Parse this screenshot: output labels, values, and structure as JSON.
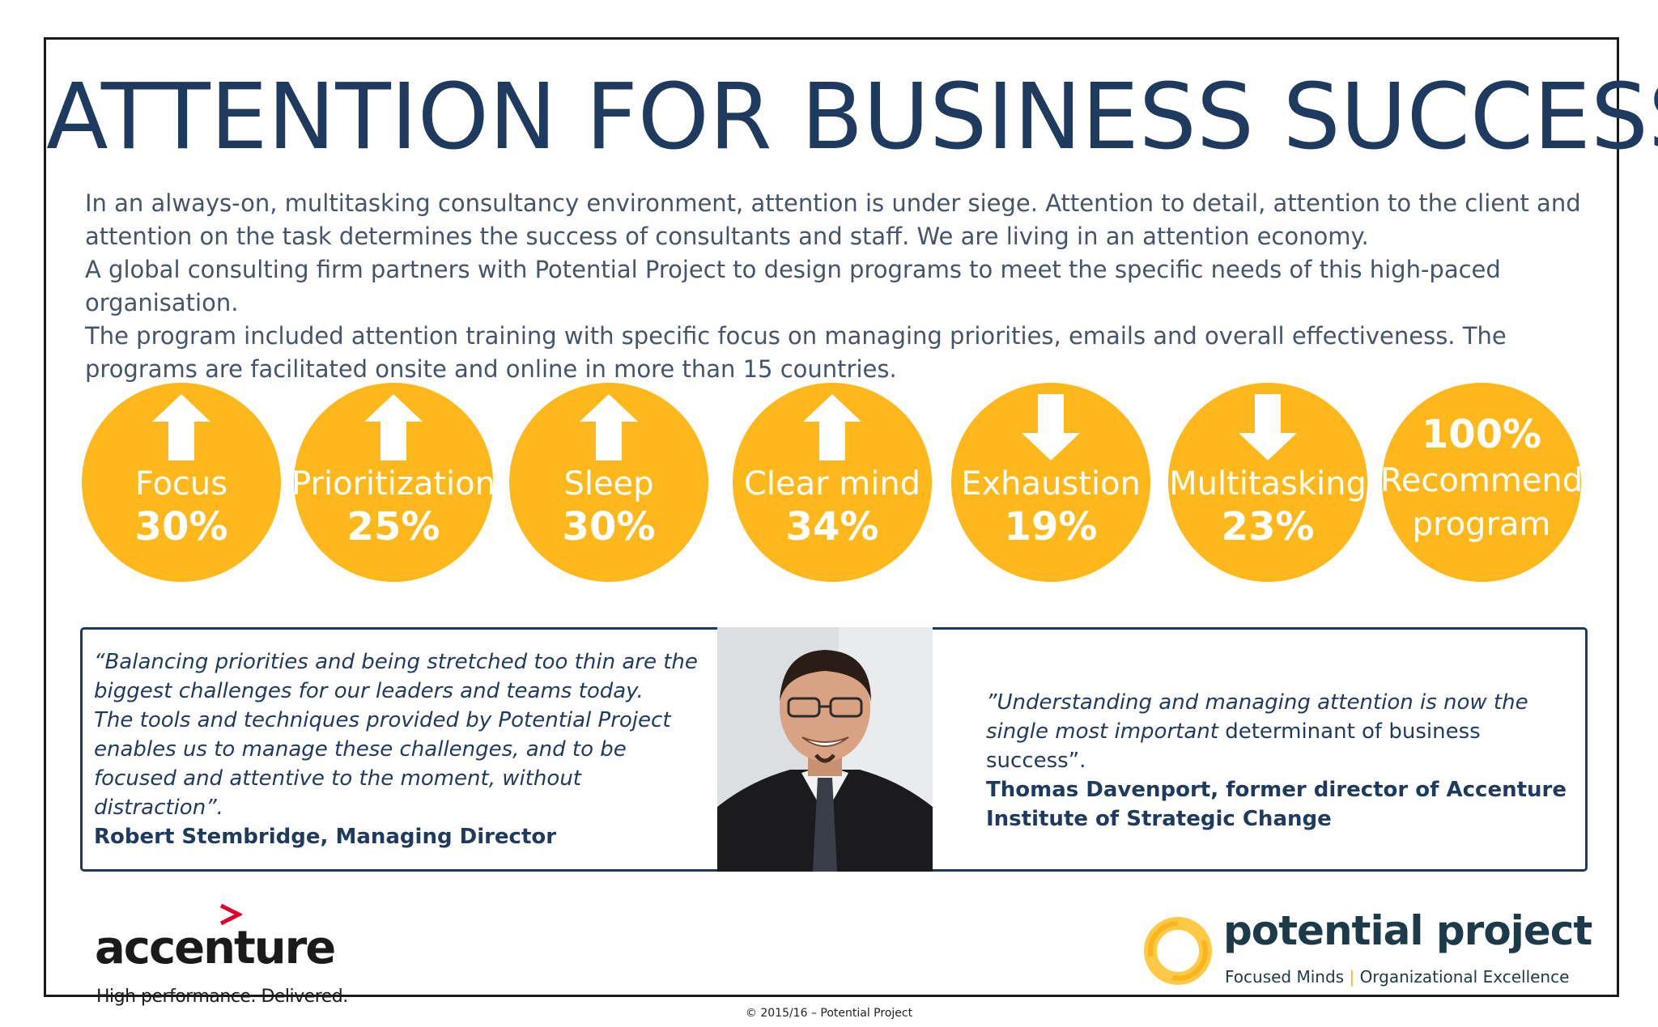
{
  "title": "ATTENTION FOR BUSINESS SUCCESS",
  "intro": {
    "line1": "In an always-on, multitasking consultancy environment, attention is under siege. Attention to detail, attention to the client and attention on the task determines the success of consultants and staff. We are living in an attention economy.",
    "line2": "A global consulting firm partners with Potential Project to design programs to meet the specific needs of this high-paced organisation.",
    "line3": "The program included attention training with specific focus on managing priorities, emails and overall effectiveness. The programs are facilitated onsite and online in more than 15 countries."
  },
  "metrics": [
    {
      "label": "Focus",
      "value": "30%",
      "arrow": "up-arrow-icon"
    },
    {
      "label": "Prioritization",
      "value": "25%",
      "arrow": "up-arrow-icon"
    },
    {
      "label": "Sleep",
      "value": "30%",
      "arrow": "up-arrow-icon"
    },
    {
      "label": "Clear mind",
      "value": "34%",
      "arrow": "up-arrow-icon"
    },
    {
      "label": "Exhaustion",
      "value": "19%",
      "arrow": "down-arrow-icon"
    },
    {
      "label": "Multitasking",
      "value": "23%",
      "arrow": "down-arrow-icon"
    }
  ],
  "recommend": {
    "value": "100%",
    "line1": "Recommend",
    "line2": "program"
  },
  "quote_left": {
    "l1": "“Balancing priorities and being stretched too thin are the biggest challenges for our leaders and teams today.",
    "l2": "The tools and techniques provided by Potential Project enables us to manage these challenges, and to be focused and attentive to the moment, without distraction”.",
    "author": "Robert Stembridge, Managing Director"
  },
  "quote_right": {
    "italic": "”Understanding and managing attention is now the single most important",
    "rest": " determinant of business success”.",
    "author": "Thomas Davenport, former director of Accenture Institute of Strategic Change"
  },
  "accenture": {
    "name": "accenture",
    "tagline": "High performance. Delivered."
  },
  "potential_project": {
    "name": "potential project",
    "tag_a": "Focused Minds",
    "tag_sep": "|",
    "tag_b": "Organizational Excellence"
  },
  "copyright": "© 2015/16 – Potential Project",
  "colors": {
    "accent": "#ffb81c",
    "navy": "#1f3a5f",
    "text": "#44546a",
    "accenture_red": "#e4002b"
  }
}
